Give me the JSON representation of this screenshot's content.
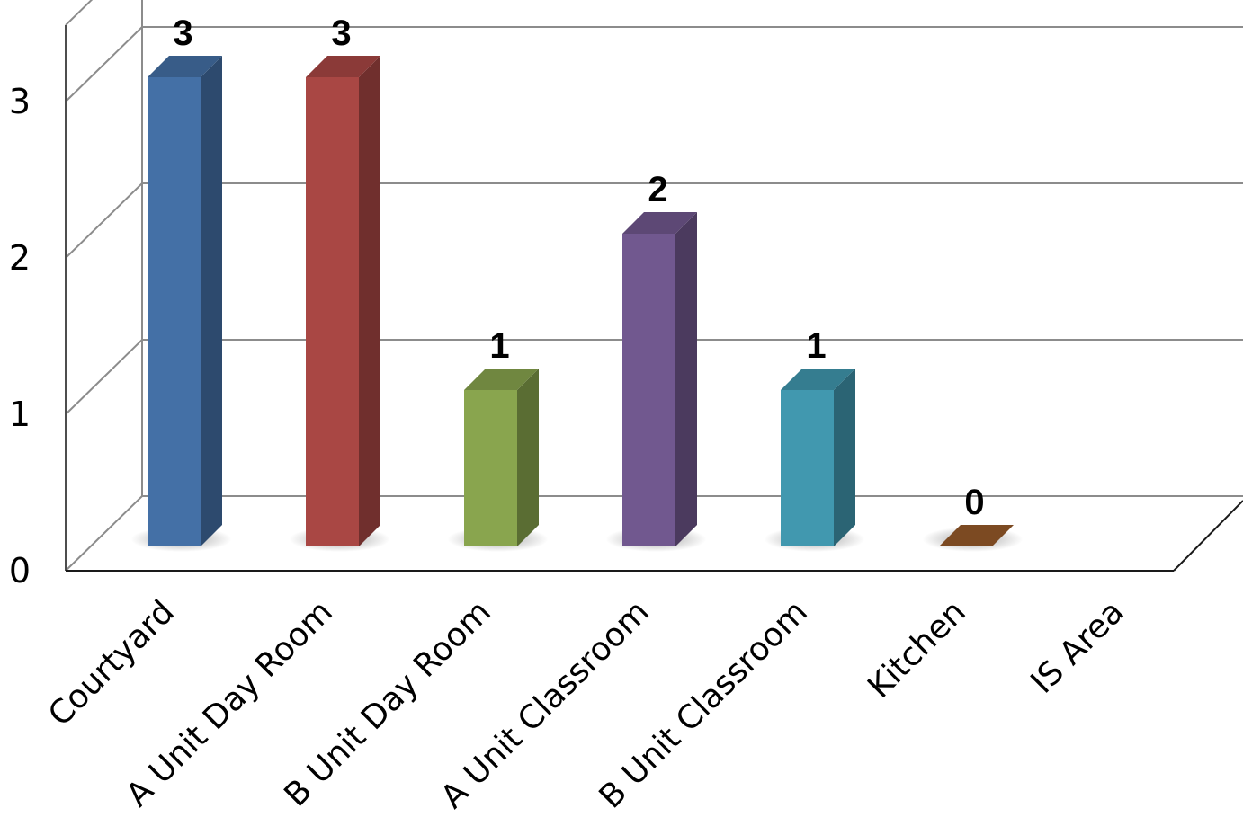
{
  "chart_data": {
    "type": "bar",
    "categories": [
      "Courtyard",
      "A Unit Day Room",
      "B Unit Day Room",
      "A Unit Classroom",
      "B Unit Classroom",
      "Kitchen",
      "IS Area"
    ],
    "values": [
      3,
      3,
      1,
      2,
      1,
      0,
      null
    ],
    "data_labels": [
      "3",
      "3",
      "1",
      "2",
      "1",
      "0",
      ""
    ],
    "colors": [
      "#4470A6",
      "#A94744",
      "#89A54E",
      "#71588F",
      "#4198AF",
      "#7C4A22",
      ""
    ],
    "ylim": [
      0,
      3
    ],
    "yticks": [
      "0",
      "1",
      "2",
      "3"
    ],
    "grid": true,
    "style": "3d",
    "title": "",
    "xlabel": "",
    "ylabel": ""
  }
}
